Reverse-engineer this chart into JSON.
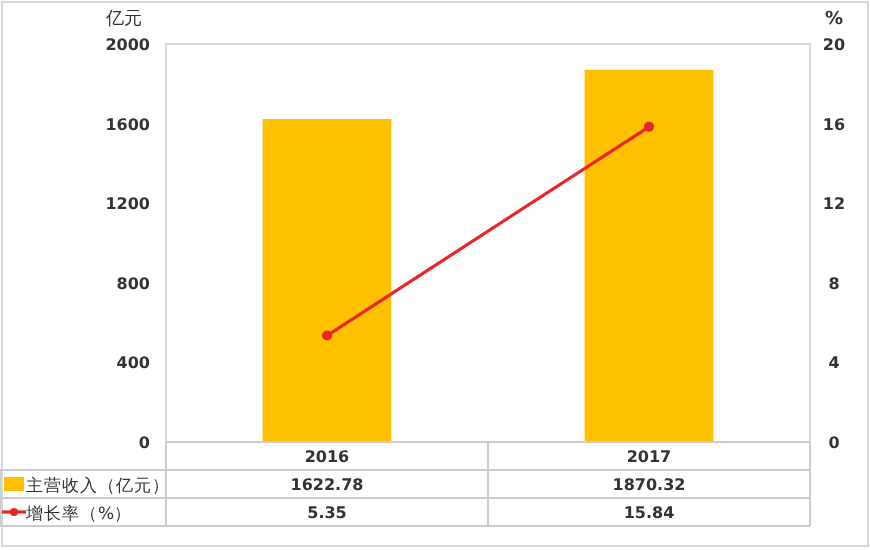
{
  "chart_data": {
    "type": "bar",
    "ylabel": "亿元",
    "y2label": "%",
    "categories": [
      "2016",
      "2017"
    ],
    "series": [
      {
        "name": "主营收入（亿元）",
        "color": "#ffc000",
        "values": [
          1622.78,
          1870.32
        ]
      },
      {
        "name": "增长率（%）",
        "type": "line",
        "axis": "y2",
        "color": "#e8262a",
        "values": [
          5.35,
          15.84
        ]
      }
    ],
    "ylim": [
      0,
      2000
    ],
    "yticks": [
      0,
      400,
      800,
      1200,
      1600,
      2000
    ],
    "y2lim": [
      0,
      20
    ],
    "y2ticks": [
      0,
      4,
      8,
      12,
      16,
      20
    ],
    "marker": "circle",
    "data_labels": true,
    "legend": "bottom",
    "grid": false
  }
}
